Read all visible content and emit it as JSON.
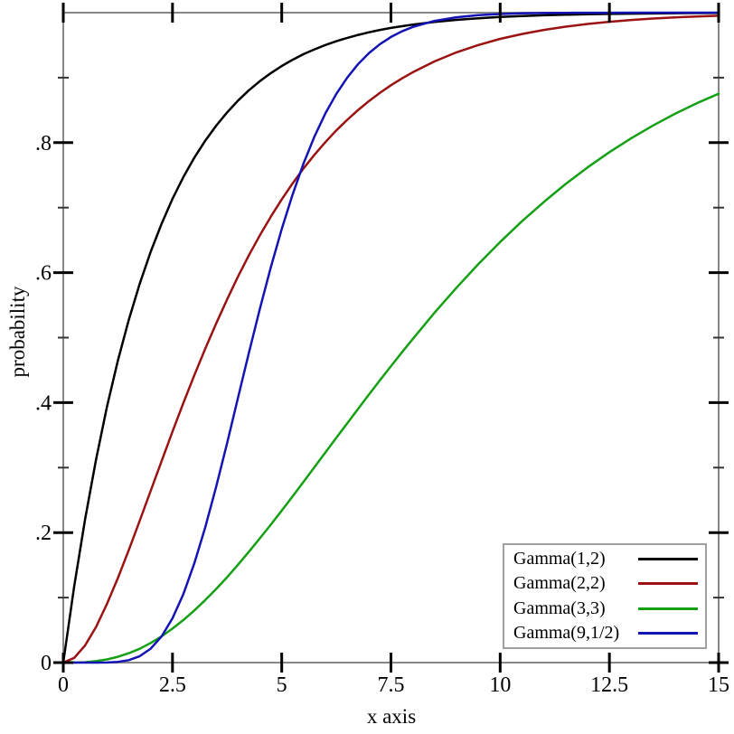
{
  "figure": {
    "background": "#ffffff",
    "frame_color": "#878787",
    "major_tick_color": "#000000",
    "minor_tick_color": "#333333",
    "text_color": "#000000",
    "legend_border_color": "#a0a0a0"
  },
  "chart_data": {
    "type": "line",
    "title": "",
    "xlabel": "x axis",
    "ylabel": "probability",
    "xlim": [
      0,
      15
    ],
    "ylim": [
      0,
      1
    ],
    "grid": false,
    "legend_position": "bottom-right",
    "x_ticks": {
      "values": [
        0,
        2.5,
        5,
        7.5,
        10,
        12.5,
        15
      ],
      "labels": [
        "0",
        "2.5",
        "5",
        "7.5",
        "10",
        "12.5",
        "15"
      ]
    },
    "y_ticks": {
      "values": [
        0,
        0.2,
        0.4,
        0.6,
        0.8
      ],
      "labels": [
        "0",
        ".2",
        ".4",
        ".6",
        ".8"
      ]
    },
    "y_minor_ticks": [
      0.1,
      0.3,
      0.5,
      0.7,
      0.9
    ],
    "x": [
      0,
      0.25,
      0.5,
      0.75,
      1,
      1.25,
      1.5,
      1.75,
      2,
      2.25,
      2.5,
      2.75,
      3,
      3.25,
      3.5,
      3.75,
      4,
      4.25,
      4.5,
      4.75,
      5,
      5.25,
      5.5,
      5.75,
      6,
      6.25,
      6.5,
      6.75,
      7,
      7.25,
      7.5,
      7.75,
      8,
      8.5,
      9,
      9.5,
      10,
      10.5,
      11,
      11.5,
      12,
      12.5,
      13,
      13.5,
      14,
      14.5,
      15
    ],
    "series": [
      {
        "name": "Gamma(1,2)",
        "color": "#000000",
        "values": [
          0,
          0.1175,
          0.2212,
          0.3127,
          0.3935,
          0.4647,
          0.5276,
          0.5831,
          0.6321,
          0.6753,
          0.7135,
          0.7472,
          0.7769,
          0.8031,
          0.8262,
          0.8466,
          0.8647,
          0.8806,
          0.8946,
          0.907,
          0.9179,
          0.9276,
          0.9361,
          0.9436,
          0.9502,
          0.9561,
          0.9612,
          0.9658,
          0.9698,
          0.9734,
          0.9765,
          0.9792,
          0.9817,
          0.9857,
          0.9889,
          0.9913,
          0.9933,
          0.9948,
          0.9959,
          0.9968,
          0.9975,
          0.9981,
          0.9985,
          0.9988,
          0.9991,
          0.9993,
          0.9994
        ]
      },
      {
        "name": "Gamma(2,2)",
        "color": "#9b1212",
        "values": [
          0,
          0.0072,
          0.0265,
          0.055,
          0.0902,
          0.1301,
          0.1733,
          0.2183,
          0.2642,
          0.31,
          0.3554,
          0.3996,
          0.4422,
          0.4831,
          0.522,
          0.559,
          0.594,
          0.6269,
          0.6574,
          0.6861,
          0.7127,
          0.7375,
          0.7604,
          0.7814,
          0.8009,
          0.8189,
          0.8352,
          0.8503,
          0.8641,
          0.8768,
          0.8883,
          0.8988,
          0.9084,
          0.9251,
          0.9389,
          0.9502,
          0.9596,
          0.9672,
          0.9734,
          0.9785,
          0.9826,
          0.986,
          0.9887,
          0.9909,
          0.9927,
          0.9941,
          0.9953
        ]
      },
      {
        "name": "Gamma(3,3)",
        "color": "#14a014",
        "values": [
          0,
          0.0001,
          0.0006,
          0.0022,
          0.0049,
          0.0089,
          0.0144,
          0.0213,
          0.0302,
          0.0404,
          0.0523,
          0.0655,
          0.0803,
          0.0962,
          0.1134,
          0.1315,
          0.1506,
          0.1706,
          0.1913,
          0.2123,
          0.2339,
          0.2559,
          0.2782,
          0.3008,
          0.3233,
          0.3459,
          0.3683,
          0.3907,
          0.4128,
          0.4346,
          0.4561,
          0.4773,
          0.4981,
          0.5385,
          0.5768,
          0.6132,
          0.6472,
          0.6792,
          0.7088,
          0.7364,
          0.7619,
          0.7854,
          0.8068,
          0.8264,
          0.8443,
          0.8606,
          0.8753
        ]
      },
      {
        "name": "Gamma(9,1/2)",
        "color": "#1414b4",
        "values": [
          0,
          0,
          0,
          0,
          0.0002,
          0.0011,
          0.0038,
          0.0099,
          0.0214,
          0.0403,
          0.0681,
          0.1056,
          0.1528,
          0.2084,
          0.2709,
          0.338,
          0.4075,
          0.4769,
          0.5443,
          0.6082,
          0.6672,
          0.7206,
          0.768,
          0.8094,
          0.845,
          0.8751,
          0.9002,
          0.9212,
          0.9379,
          0.9516,
          0.9626,
          0.9712,
          0.978,
          0.9874,
          0.9929,
          0.9961,
          0.9979,
          0.9989,
          0.9994,
          0.9997,
          0.9998,
          0.9999,
          1,
          1,
          1,
          1,
          1
        ]
      }
    ]
  }
}
